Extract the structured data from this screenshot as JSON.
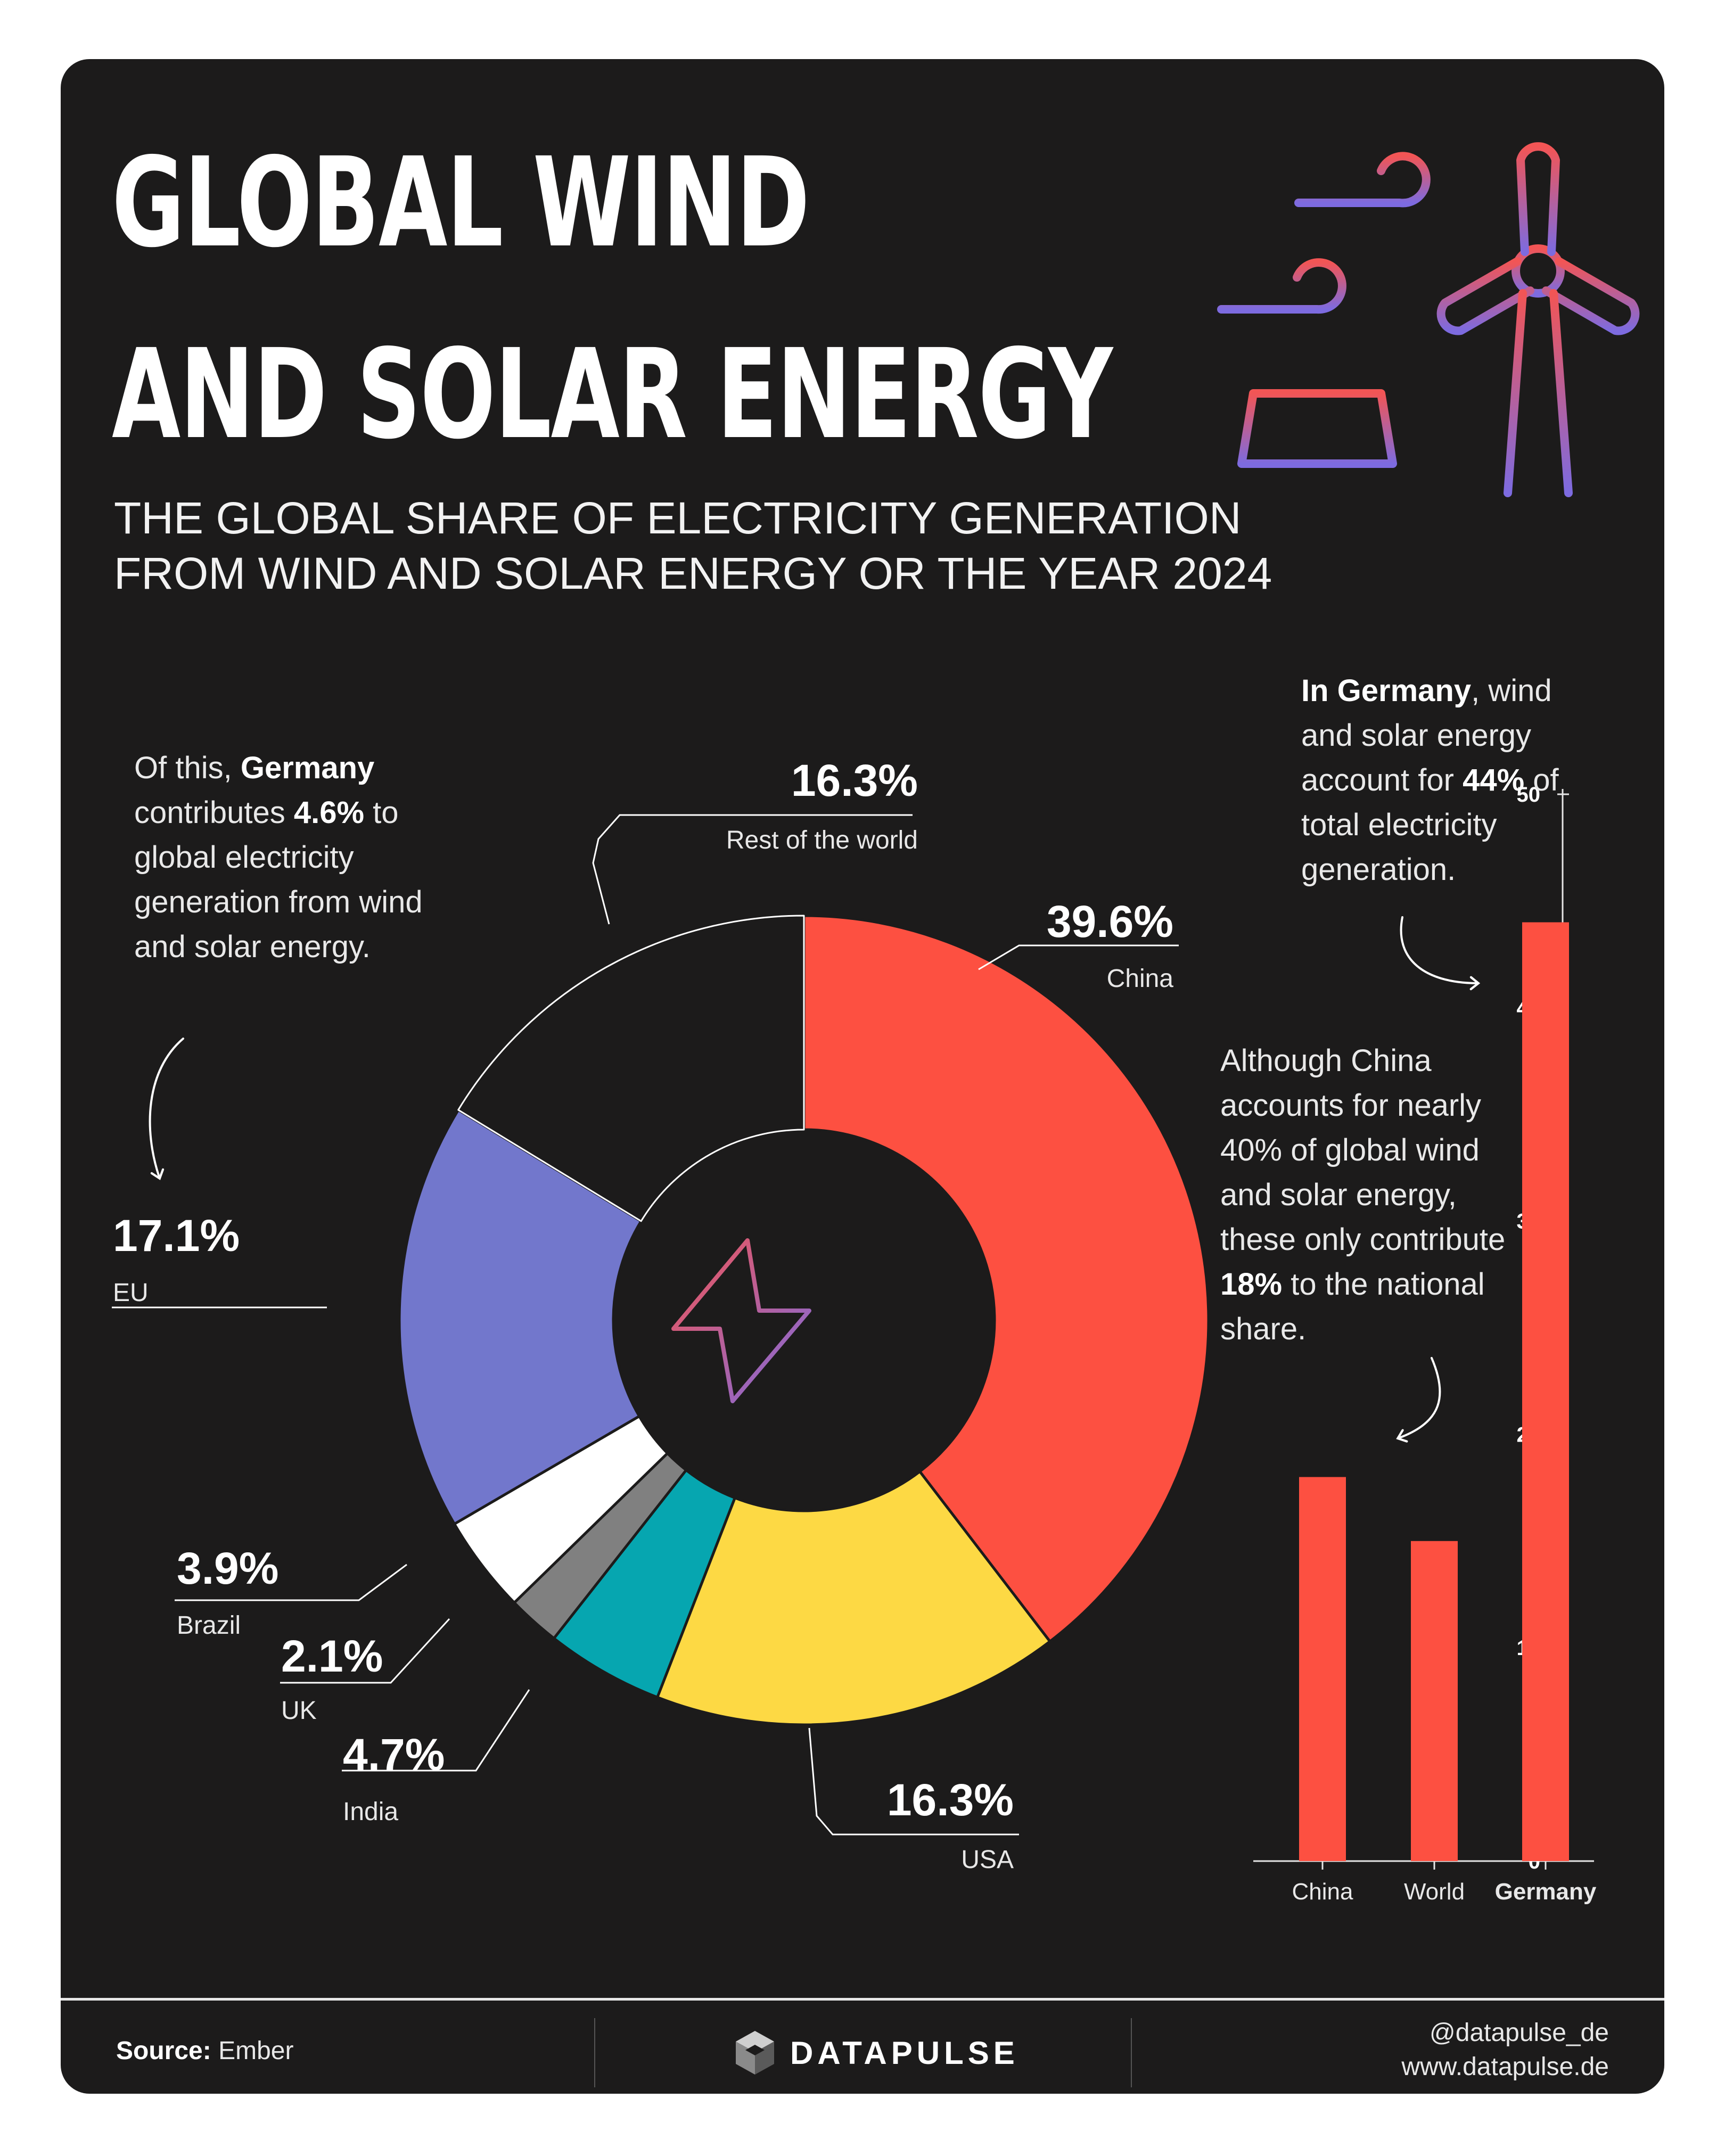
{
  "title_line1": "GLOBAL WIND",
  "title_line2": "AND SOLAR ENERGY",
  "subtitle_line1": "THE GLOBAL SHARE OF ELECTRICITY GENERATION",
  "subtitle_line2": "FROM WIND AND SOLAR ENERGY OR THE YEAR 2024",
  "icons": {
    "header": "wind-turbine-and-solar-panel-icon",
    "center": "lightning-bolt-icon",
    "brand": "cube-logo-icon"
  },
  "notes": {
    "germany_global": {
      "t1": "Of this, ",
      "b1": "Germany",
      "t2": " contributes ",
      "b2": "4.6%",
      "t3": " to global electricity generation from wind and solar energy."
    },
    "germany_national": {
      "b1": "In Germany",
      "t1": ", wind and solar energy account for ",
      "b2": "44%",
      "t2": " of total electricity generation."
    },
    "china": {
      "t1": "Although China accounts for nearly 40% of global wind and solar energy, these only contribute ",
      "b1": "18%",
      "t2": " to the national share."
    }
  },
  "chart_data": [
    {
      "type": "pie",
      "donut": true,
      "slices": [
        {
          "label": "China",
          "value": 39.6,
          "display": "39.6%",
          "color": "#fd5041"
        },
        {
          "label": "USA",
          "value": 16.3,
          "display": "16.3%",
          "color": "#fdd944"
        },
        {
          "label": "India",
          "value": 4.7,
          "display": "4.7%",
          "color": "#06a6b0"
        },
        {
          "label": "UK",
          "value": 2.1,
          "display": "2.1%",
          "color": "#808080"
        },
        {
          "label": "Brazil",
          "value": 3.9,
          "display": "3.9%",
          "color": "#ffffff"
        },
        {
          "label": "EU",
          "value": 17.1,
          "display": "17.1%",
          "color": "#7277cc"
        },
        {
          "label": "Rest of the world",
          "value": 16.3,
          "display": "16.3%",
          "color": "#1c1b1b"
        }
      ]
    },
    {
      "type": "bar",
      "categories": [
        "China",
        "World",
        "Germany"
      ],
      "values": [
        18,
        15,
        44
      ],
      "ylim": [
        0,
        50
      ],
      "yticks": [
        0,
        10,
        20,
        30,
        40,
        50
      ],
      "color": "#fd5041",
      "bold_category": "Germany"
    }
  ],
  "footer": {
    "source_label": "Source:",
    "source_value": "Ember",
    "brand": "DATAPULSE",
    "social": "@datapulse_de",
    "website": "www.datapulse.de"
  }
}
